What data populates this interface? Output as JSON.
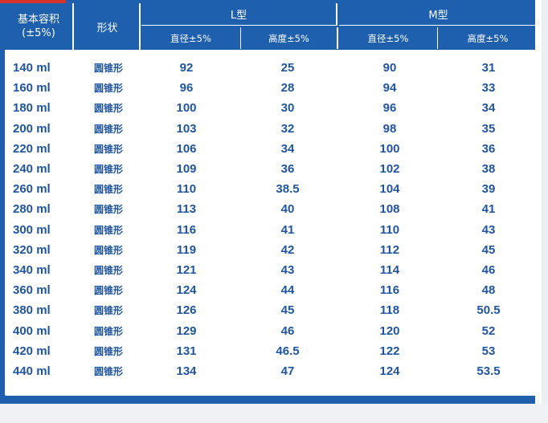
{
  "header": {
    "capacity_line1": "基本容积",
    "capacity_line2": "(±5%)",
    "shape": "形状",
    "l_type": "L型",
    "m_type": "M型",
    "diameter": "直径±5%",
    "height": "高度±5%"
  },
  "rows": [
    {
      "capacity": "140 ml",
      "shape": "圆锥形",
      "l_d": "92",
      "l_h": "25",
      "m_d": "90",
      "m_h": "31"
    },
    {
      "capacity": "160 ml",
      "shape": "圆锥形",
      "l_d": "96",
      "l_h": "28",
      "m_d": "94",
      "m_h": "33"
    },
    {
      "capacity": "180 ml",
      "shape": "圆锥形",
      "l_d": "100",
      "l_h": "30",
      "m_d": "96",
      "m_h": "34"
    },
    {
      "capacity": "200 ml",
      "shape": "圆锥形",
      "l_d": "103",
      "l_h": "32",
      "m_d": "98",
      "m_h": "35"
    },
    {
      "capacity": "220 ml",
      "shape": "圆锥形",
      "l_d": "106",
      "l_h": "34",
      "m_d": "100",
      "m_h": "36"
    },
    {
      "capacity": "240 ml",
      "shape": "圆锥形",
      "l_d": "109",
      "l_h": "36",
      "m_d": "102",
      "m_h": "38"
    },
    {
      "capacity": "260 ml",
      "shape": "圆锥形",
      "l_d": "110",
      "l_h": "38.5",
      "m_d": "104",
      "m_h": "39"
    },
    {
      "capacity": "280 ml",
      "shape": "圆锥形",
      "l_d": "113",
      "l_h": "40",
      "m_d": "108",
      "m_h": "41"
    },
    {
      "capacity": "300 ml",
      "shape": "圆锥形",
      "l_d": "116",
      "l_h": "41",
      "m_d": "110",
      "m_h": "43"
    },
    {
      "capacity": "320 ml",
      "shape": "圆锥形",
      "l_d": "119",
      "l_h": "42",
      "m_d": "112",
      "m_h": "45"
    },
    {
      "capacity": "340 ml",
      "shape": "圆锥形",
      "l_d": "121",
      "l_h": "43",
      "m_d": "114",
      "m_h": "46"
    },
    {
      "capacity": "360 ml",
      "shape": "圆锥形",
      "l_d": "124",
      "l_h": "44",
      "m_d": "116",
      "m_h": "48"
    },
    {
      "capacity": "380 ml",
      "shape": "圆锥形",
      "l_d": "126",
      "l_h": "45",
      "m_d": "118",
      "m_h": "50.5"
    },
    {
      "capacity": "400 ml",
      "shape": "圆锥形",
      "l_d": "129",
      "l_h": "46",
      "m_d": "120",
      "m_h": "52"
    },
    {
      "capacity": "420 ml",
      "shape": "圆锥形",
      "l_d": "131",
      "l_h": "46.5",
      "m_d": "122",
      "m_h": "53"
    },
    {
      "capacity": "440 ml",
      "shape": "圆锥形",
      "l_d": "134",
      "l_h": "47",
      "m_d": "124",
      "m_h": "53.5"
    }
  ],
  "colors": {
    "header_bg": "#1e5fae",
    "text": "#1f55a0",
    "accent": "#d6322a"
  }
}
